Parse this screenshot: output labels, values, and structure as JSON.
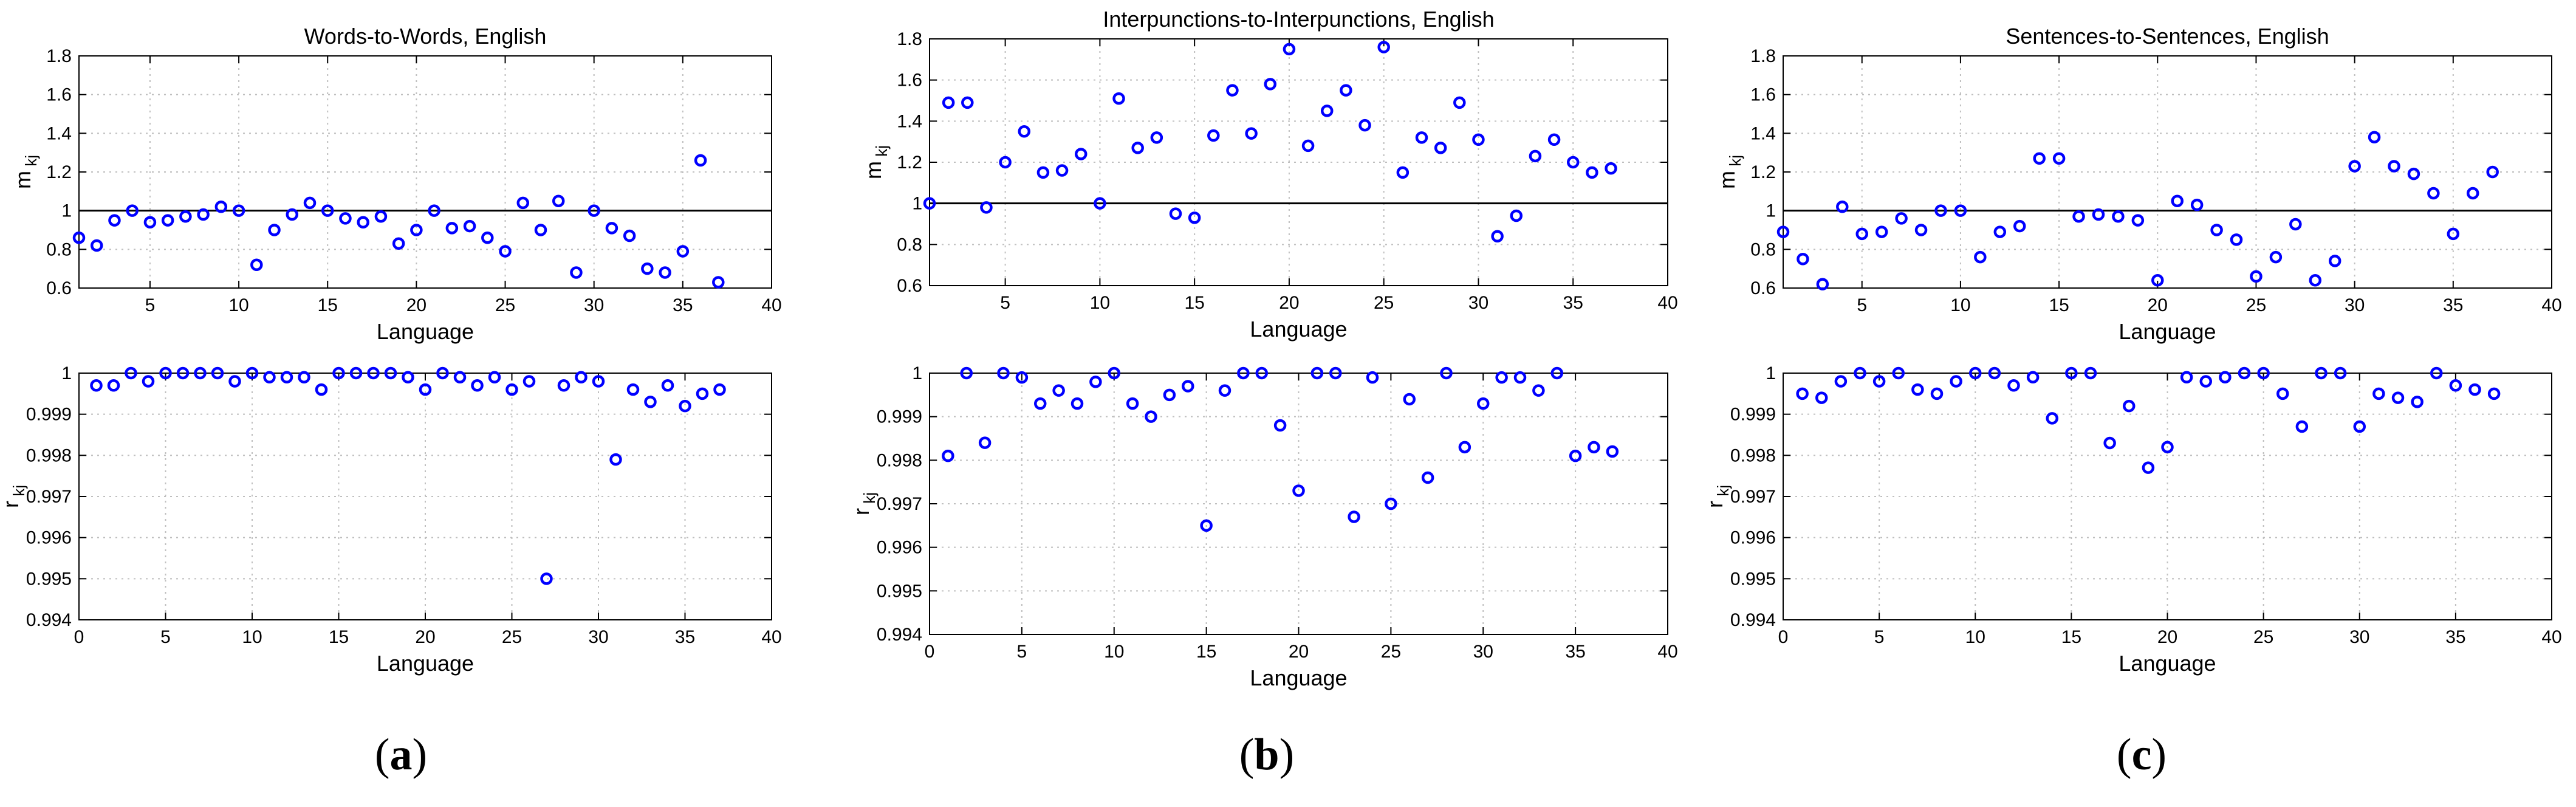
{
  "figure": {
    "panels": [
      {
        "label_open": "(",
        "label_letter": "a",
        "label_close": ")"
      },
      {
        "label_open": "(",
        "label_letter": "b",
        "label_close": ")"
      },
      {
        "label_open": "(",
        "label_letter": "c",
        "label_close": ")"
      }
    ]
  },
  "chart_data": [
    {
      "type": "scatter",
      "title": "Words-to-Words, English",
      "xlabel": "Language",
      "ylabel": "m_kj",
      "xlim": [
        1,
        40
      ],
      "ylim": [
        0.6,
        1.8
      ],
      "xticks": [
        5,
        10,
        15,
        20,
        25,
        30,
        35,
        40
      ],
      "yticks": [
        0.6,
        0.8,
        1,
        1.2,
        1.4,
        1.6,
        1.8
      ],
      "ytick_labels": [
        "0.6",
        "0.8",
        "1",
        "1.2",
        "1.4",
        "1.6",
        "1.8"
      ],
      "grid": true,
      "reference_line": 1,
      "x": [
        1,
        2,
        3,
        4,
        5,
        6,
        7,
        8,
        9,
        10,
        11,
        12,
        13,
        14,
        15,
        16,
        17,
        18,
        19,
        20,
        21,
        22,
        23,
        24,
        25,
        26,
        27,
        28,
        29,
        30,
        31,
        32,
        33,
        34,
        35,
        36,
        37
      ],
      "y": [
        0.86,
        0.82,
        0.95,
        1.0,
        0.94,
        0.95,
        0.97,
        0.98,
        1.02,
        1.0,
        0.72,
        0.9,
        0.98,
        1.04,
        1.0,
        0.96,
        0.94,
        0.97,
        0.83,
        0.9,
        1.0,
        0.91,
        0.92,
        0.86,
        0.79,
        1.04,
        0.9,
        1.05,
        0.68,
        1.0,
        0.91,
        0.87,
        0.7,
        0.68,
        0.79,
        1.26,
        0.63
      ],
      "marker_color": "#0000ff"
    },
    {
      "type": "scatter",
      "title": "",
      "xlabel": "Language",
      "ylabel": "r_kj",
      "xlim": [
        0,
        40
      ],
      "ylim": [
        0.994,
        1
      ],
      "xticks": [
        0,
        5,
        10,
        15,
        20,
        25,
        30,
        35,
        40
      ],
      "yticks": [
        0.994,
        0.995,
        0.996,
        0.997,
        0.998,
        0.999,
        1
      ],
      "ytick_labels": [
        "0.994",
        "0.995",
        "0.996",
        "0.997",
        "0.998",
        "0.999",
        "1"
      ],
      "grid": true,
      "x": [
        1,
        2,
        3,
        4,
        5,
        6,
        7,
        8,
        9,
        10,
        11,
        12,
        13,
        14,
        15,
        16,
        17,
        18,
        19,
        20,
        21,
        22,
        23,
        24,
        25,
        26,
        27,
        28,
        29,
        30,
        31,
        32,
        33,
        34,
        35,
        36,
        37
      ],
      "y": [
        0.9997,
        0.9997,
        1.0,
        0.9998,
        1.0,
        1.0,
        1.0,
        1.0,
        0.9998,
        1.0,
        0.9999,
        0.9999,
        0.9999,
        0.9996,
        1.0,
        1.0,
        1.0,
        1.0,
        0.9999,
        0.9996,
        1.0,
        0.9999,
        0.9997,
        0.9999,
        0.9996,
        0.9998,
        0.995,
        0.9997,
        0.9999,
        0.9998,
        0.9979,
        0.9996,
        0.9993,
        0.9997,
        0.9992,
        0.9995,
        0.9996
      ],
      "marker_color": "#0000ff"
    },
    {
      "type": "scatter",
      "title": "Interpunctions-to-Interpunctions, English",
      "xlabel": "Language",
      "ylabel": "m_kj",
      "xlim": [
        1,
        40
      ],
      "ylim": [
        0.6,
        1.8
      ],
      "xticks": [
        5,
        10,
        15,
        20,
        25,
        30,
        35,
        40
      ],
      "yticks": [
        0.6,
        0.8,
        1,
        1.2,
        1.4,
        1.6,
        1.8
      ],
      "ytick_labels": [
        "0.6",
        "0.8",
        "1",
        "1.2",
        "1.4",
        "1.6",
        "1.8"
      ],
      "grid": true,
      "reference_line": 1,
      "x": [
        1,
        2,
        3,
        4,
        5,
        6,
        7,
        8,
        9,
        10,
        11,
        12,
        13,
        14,
        15,
        16,
        17,
        18,
        19,
        20,
        21,
        22,
        23,
        24,
        25,
        26,
        27,
        28,
        29,
        30,
        31,
        32,
        33,
        34,
        35,
        36,
        37
      ],
      "y": [
        1.0,
        1.49,
        1.49,
        0.98,
        1.2,
        1.35,
        1.15,
        1.16,
        1.24,
        1.0,
        1.51,
        1.27,
        1.32,
        0.95,
        0.93,
        1.33,
        1.55,
        1.34,
        1.58,
        1.75,
        1.28,
        1.45,
        1.55,
        1.38,
        1.76,
        1.15,
        1.32,
        1.27,
        1.49,
        1.31,
        0.84,
        0.94,
        1.23,
        1.31,
        1.2,
        1.15,
        1.17
      ],
      "marker_color": "#0000ff"
    },
    {
      "type": "scatter",
      "title": "",
      "xlabel": "Language",
      "ylabel": "r_kj",
      "xlim": [
        0,
        40
      ],
      "ylim": [
        0.994,
        1
      ],
      "xticks": [
        0,
        5,
        10,
        15,
        20,
        25,
        30,
        35,
        40
      ],
      "yticks": [
        0.994,
        0.995,
        0.996,
        0.997,
        0.998,
        0.999,
        1
      ],
      "ytick_labels": [
        "0.994",
        "0.995",
        "0.996",
        "0.997",
        "0.998",
        "0.999",
        "1"
      ],
      "grid": true,
      "x": [
        1,
        2,
        3,
        4,
        5,
        6,
        7,
        8,
        9,
        10,
        11,
        12,
        13,
        14,
        15,
        16,
        17,
        18,
        19,
        20,
        21,
        22,
        23,
        24,
        25,
        26,
        27,
        28,
        29,
        30,
        31,
        32,
        33,
        34,
        35,
        36,
        37
      ],
      "y": [
        0.9981,
        1.0,
        0.9984,
        1.0,
        0.9999,
        0.9993,
        0.9996,
        0.9993,
        0.9998,
        1.0,
        0.9993,
        0.999,
        0.9995,
        0.9997,
        0.9965,
        0.9996,
        1.0,
        1.0,
        0.9988,
        0.9973,
        1.0,
        1.0,
        0.9967,
        0.9999,
        0.997,
        0.9994,
        0.9976,
        1.0,
        0.9983,
        0.9993,
        0.9999,
        0.9999,
        0.9996,
        1.0,
        0.9981,
        0.9983,
        0.9982
      ],
      "marker_color": "#0000ff"
    },
    {
      "type": "scatter",
      "title": "Sentences-to-Sentences, English",
      "xlabel": "Language",
      "ylabel": "m_kj",
      "xlim": [
        1,
        40
      ],
      "ylim": [
        0.6,
        1.8
      ],
      "xticks": [
        5,
        10,
        15,
        20,
        25,
        30,
        35,
        40
      ],
      "yticks": [
        0.6,
        0.8,
        1,
        1.2,
        1.4,
        1.6,
        1.8
      ],
      "ytick_labels": [
        "0.6",
        "0.8",
        "1",
        "1.2",
        "1.4",
        "1.6",
        "1.8"
      ],
      "grid": true,
      "reference_line": 1,
      "x": [
        1,
        2,
        3,
        4,
        5,
        6,
        7,
        8,
        9,
        10,
        11,
        12,
        13,
        14,
        15,
        16,
        17,
        18,
        19,
        20,
        21,
        22,
        23,
        24,
        25,
        26,
        27,
        28,
        29,
        30,
        31,
        32,
        33,
        34,
        35,
        36,
        37
      ],
      "y": [
        0.89,
        0.75,
        0.62,
        1.02,
        0.88,
        0.89,
        0.96,
        0.9,
        1.0,
        1.0,
        0.76,
        0.89,
        0.92,
        1.27,
        1.27,
        0.97,
        0.98,
        0.97,
        0.95,
        0.64,
        1.05,
        1.03,
        0.9,
        0.85,
        0.66,
        0.76,
        0.93,
        0.64,
        0.74,
        1.23,
        1.38,
        1.23,
        1.19,
        1.09,
        0.88,
        1.09,
        1.2
      ],
      "marker_color": "#0000ff"
    },
    {
      "type": "scatter",
      "title": "",
      "xlabel": "Language",
      "ylabel": "r_kj",
      "xlim": [
        0,
        40
      ],
      "ylim": [
        0.994,
        1
      ],
      "xticks": [
        0,
        5,
        10,
        15,
        20,
        25,
        30,
        35,
        40
      ],
      "yticks": [
        0.994,
        0.995,
        0.996,
        0.997,
        0.998,
        0.999,
        1
      ],
      "ytick_labels": [
        "0.994",
        "0.995",
        "0.996",
        "0.997",
        "0.998",
        "0.999",
        "1"
      ],
      "grid": true,
      "x": [
        1,
        2,
        3,
        4,
        5,
        6,
        7,
        8,
        9,
        10,
        11,
        12,
        13,
        14,
        15,
        16,
        17,
        18,
        19,
        20,
        21,
        22,
        23,
        24,
        25,
        26,
        27,
        28,
        29,
        30,
        31,
        32,
        33,
        34,
        35,
        36,
        37
      ],
      "y": [
        0.9995,
        0.9994,
        0.9998,
        1.0,
        0.9998,
        1.0,
        0.9996,
        0.9995,
        0.9998,
        1.0,
        1.0,
        0.9997,
        0.9999,
        0.9989,
        1.0,
        1.0,
        0.9983,
        0.9992,
        0.9977,
        0.9982,
        0.9999,
        0.9998,
        0.9999,
        1.0,
        1.0,
        0.9995,
        0.9987,
        1.0,
        1.0,
        0.9987,
        0.9995,
        0.9994,
        0.9993,
        1.0,
        0.9997,
        0.9996,
        0.9995
      ],
      "marker_color": "#0000ff"
    }
  ]
}
